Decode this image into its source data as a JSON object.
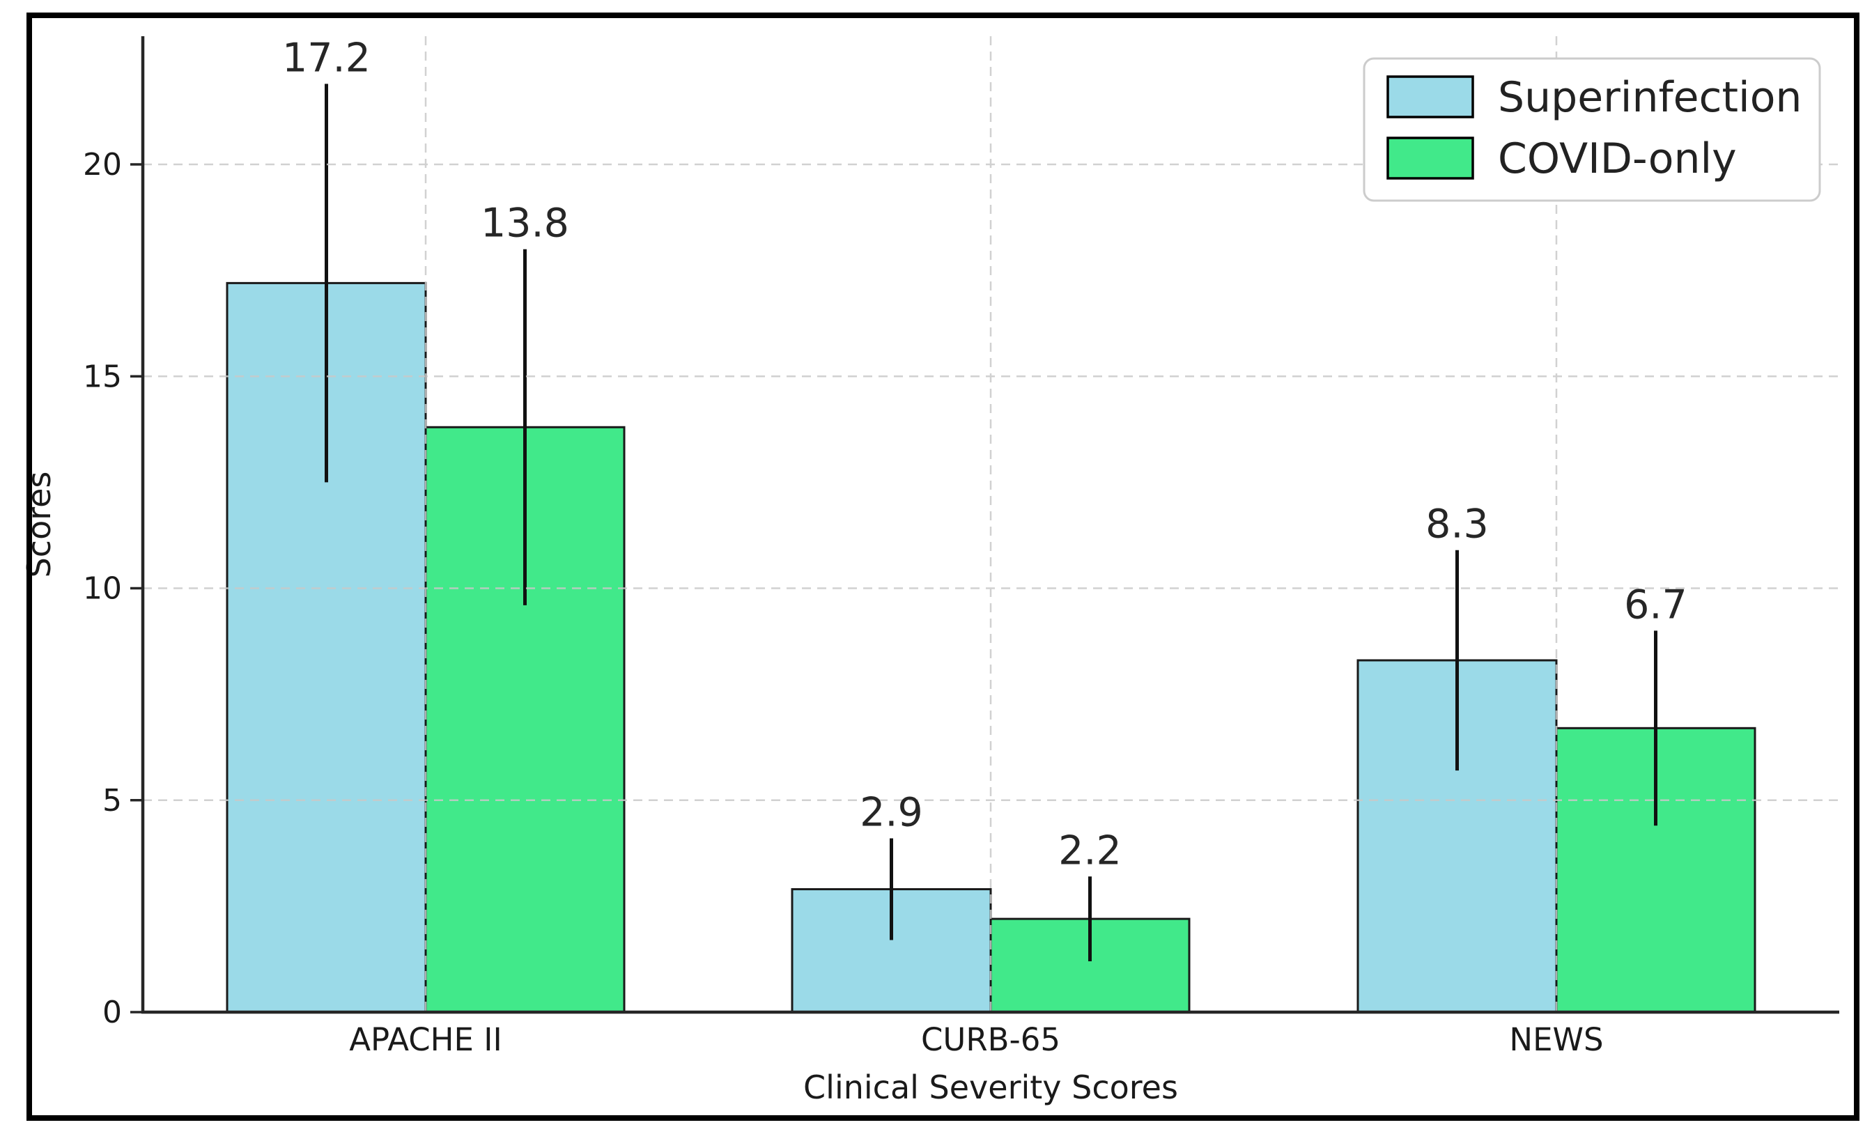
{
  "figure": {
    "background": "#ffffff",
    "frame_color": "#000000"
  },
  "chart_data": {
    "type": "bar",
    "title": "",
    "xlabel": "Clinical Severity Scores",
    "ylabel": "Scores",
    "categories": [
      "APACHE II",
      "CURB-65",
      "NEWS"
    ],
    "series": [
      {
        "name": "Superinfection",
        "color": "#9BDAE8",
        "values": [
          17.2,
          2.9,
          8.3
        ],
        "errors": [
          4.7,
          1.2,
          2.6
        ]
      },
      {
        "name": "COVID-only",
        "color": "#41E98A",
        "values": [
          13.8,
          2.2,
          6.7
        ],
        "errors": [
          4.2,
          1.0,
          2.3
        ]
      }
    ],
    "value_labels": [
      [
        "17.2",
        "2.9",
        "8.3"
      ],
      [
        "13.8",
        "2.2",
        "6.7"
      ]
    ],
    "yticks": [
      0,
      5,
      10,
      15,
      20
    ],
    "ytick_labels": [
      "0",
      "5",
      "10",
      "15",
      "20"
    ],
    "ylim": [
      0,
      23
    ],
    "grid": true,
    "grid_style": "dashed",
    "grid_color": "#c9c9c9",
    "bar_edge_color": "#1a1a1a",
    "error_bar_color": "#111111",
    "error_bar_caps": false,
    "legend_position": "upper right"
  }
}
